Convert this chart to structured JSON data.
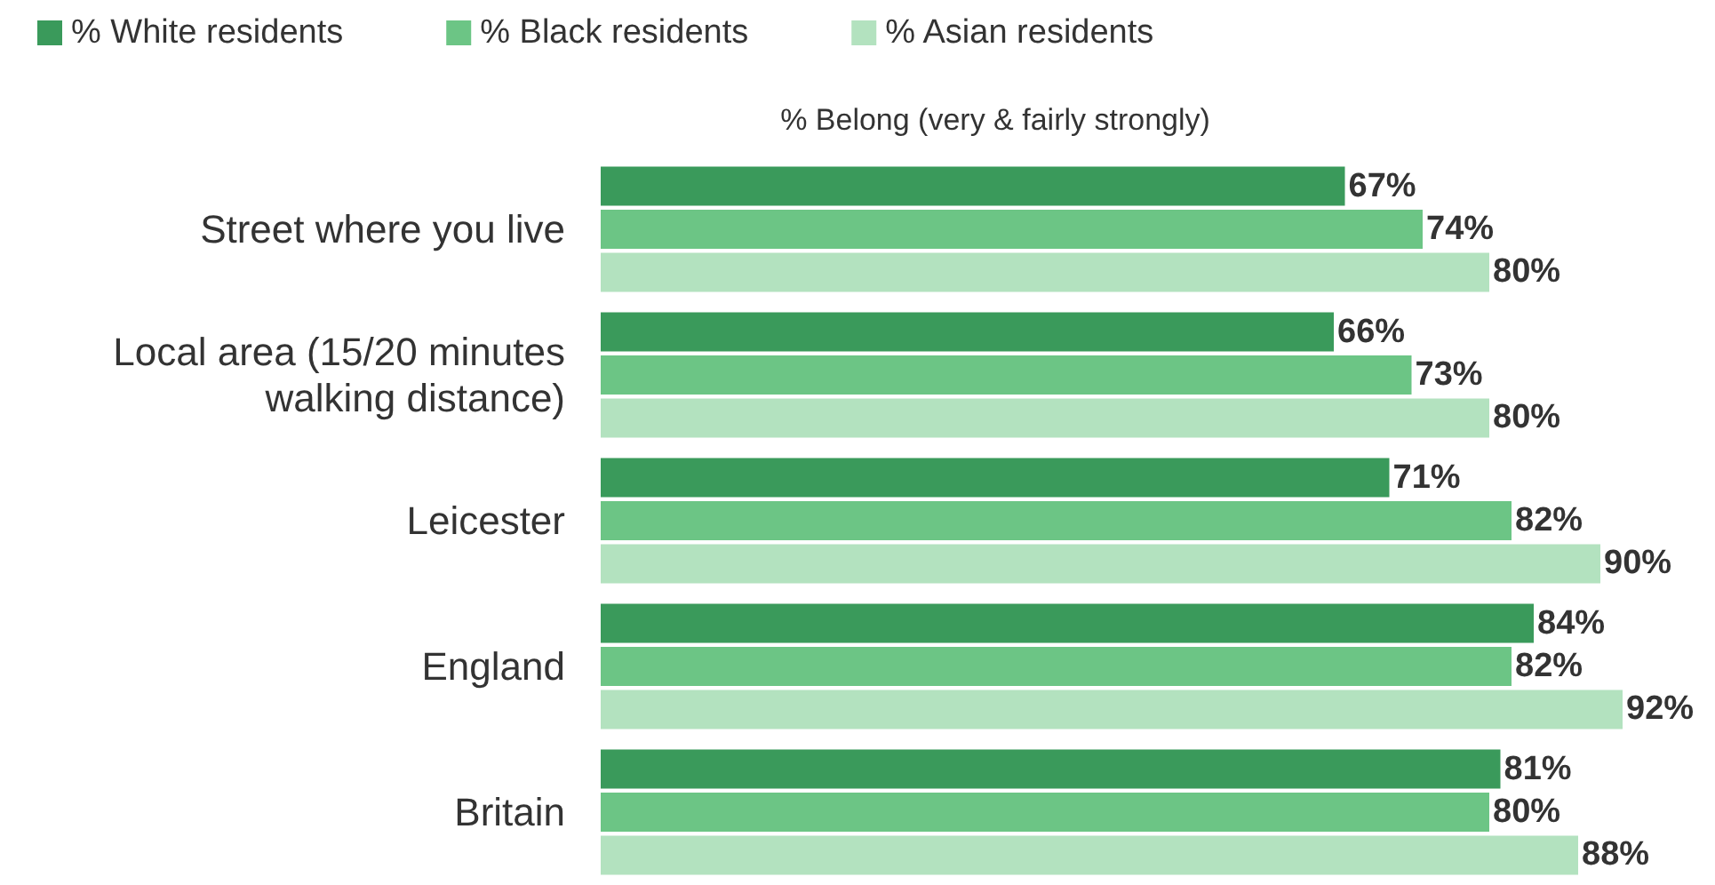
{
  "chart_data": {
    "type": "bar",
    "orientation": "horizontal",
    "title": "% Belong (very & fairly strongly)",
    "legend": "top left",
    "tick_labels": "y",
    "categories": [
      "Street where you live",
      "Local area (15/20 minutes\nwalking distance)",
      "Leicester",
      "England",
      "Britain"
    ],
    "series": [
      {
        "name": "% White residents",
        "color": "#3a9a5b",
        "values": [
          67,
          66,
          71,
          84,
          81
        ],
        "value_labels": [
          "67%",
          "66%",
          "71%",
          "84%",
          "81%"
        ]
      },
      {
        "name": "% Black residents",
        "color": "#6cc585",
        "values": [
          74,
          73,
          82,
          82,
          80
        ],
        "value_labels": [
          "74%",
          "73%",
          "82%",
          "82%",
          "80%"
        ]
      },
      {
        "name": "% Asian residents",
        "color": "#b3e2bf",
        "values": [
          80,
          80,
          90,
          92,
          88
        ],
        "value_labels": [
          "80%",
          "80%",
          "90%",
          "92%",
          "88%"
        ]
      }
    ]
  }
}
